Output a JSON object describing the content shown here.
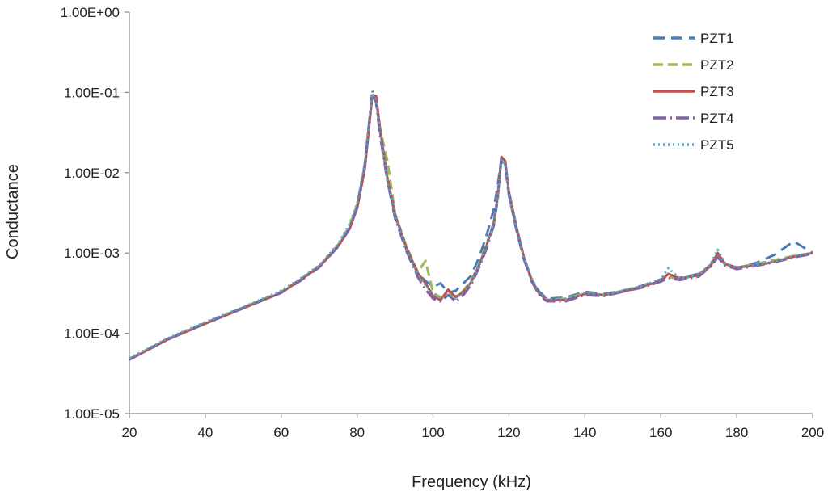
{
  "chart_data": {
    "type": "line",
    "title": "",
    "xlabel": "Frequency (kHz)",
    "ylabel": "Conductance",
    "x_scale": "linear",
    "y_scale": "log",
    "xlim": [
      20,
      200
    ],
    "ylim": [
      1e-05,
      1
    ],
    "x_ticks": [
      20,
      40,
      60,
      80,
      100,
      120,
      140,
      160,
      180,
      200
    ],
    "x_tick_labels": [
      "20",
      "40",
      "60",
      "80",
      "100",
      "120",
      "140",
      "160",
      "180",
      "200"
    ],
    "y_ticks": [
      1e-05,
      0.0001,
      0.001,
      0.01,
      0.1,
      1
    ],
    "y_tick_labels": [
      "1.00E-05",
      "1.00E-04",
      "1.00E-03",
      "1.00E-02",
      "1.00E-01",
      "1.00E+00"
    ],
    "grid": false,
    "legend_position": "top-right",
    "x": [
      20,
      30,
      40,
      50,
      60,
      65,
      70,
      75,
      78,
      80,
      82,
      83,
      84,
      85,
      86,
      88,
      90,
      93,
      96,
      98,
      100,
      102,
      104,
      106,
      108,
      110,
      112,
      114,
      116,
      117,
      118,
      119,
      120,
      122,
      124,
      126,
      128,
      130,
      135,
      140,
      145,
      150,
      155,
      160,
      162,
      165,
      170,
      173,
      175,
      177,
      180,
      185,
      190,
      195,
      200
    ],
    "series": [
      {
        "name": "PZT1",
        "color": "#4a7ebb",
        "dash": "14,8",
        "width": 3,
        "values": [
          4.8e-05,
          8.5e-05,
          0.000135,
          0.00021,
          0.00033,
          0.00046,
          0.00068,
          0.00125,
          0.0021,
          0.0038,
          0.012,
          0.034,
          0.09,
          0.085,
          0.034,
          0.0082,
          0.0029,
          0.0011,
          0.00055,
          0.00045,
          0.00038,
          0.00042,
          0.00032,
          0.00034,
          0.00042,
          0.00052,
          0.00085,
          0.0016,
          0.0035,
          0.0068,
          0.0145,
          0.012,
          0.0052,
          0.0019,
          0.00082,
          0.00046,
          0.00033,
          0.00027,
          0.00028,
          0.00033,
          0.00031,
          0.00034,
          0.00039,
          0.00047,
          0.00052,
          0.00049,
          0.00055,
          0.0007,
          0.0009,
          0.00072,
          0.00065,
          0.00075,
          0.00095,
          0.0014,
          0.001
        ]
      },
      {
        "name": "PZT2",
        "color": "#9bbb59",
        "dash": "12,6",
        "width": 3,
        "values": [
          4.8e-05,
          8.4e-05,
          0.000134,
          0.00021,
          0.00033,
          0.00047,
          0.00069,
          0.00126,
          0.0022,
          0.004,
          0.013,
          0.035,
          0.088,
          0.08,
          0.036,
          0.014,
          0.0031,
          0.0012,
          0.00058,
          0.0008,
          0.00032,
          0.00028,
          0.0003,
          0.00029,
          0.00034,
          0.00045,
          0.0007,
          0.0013,
          0.0022,
          0.0045,
          0.0155,
          0.0125,
          0.0055,
          0.002,
          0.00085,
          0.00045,
          0.00031,
          0.00026,
          0.00027,
          0.00032,
          0.0003,
          0.00034,
          0.00038,
          0.00046,
          0.0005,
          0.00048,
          0.00054,
          0.0007,
          0.00095,
          0.00072,
          0.00066,
          0.00073,
          0.00082,
          0.00092,
          0.001
        ]
      },
      {
        "name": "PZT3",
        "color": "#c0504d",
        "dash": "",
        "width": 3,
        "values": [
          4.7e-05,
          8.3e-05,
          0.000132,
          0.000205,
          0.00032,
          0.00046,
          0.00067,
          0.00122,
          0.002,
          0.0036,
          0.011,
          0.032,
          0.092,
          0.09,
          0.037,
          0.0085,
          0.003,
          0.00115,
          0.00056,
          0.00042,
          0.00029,
          0.00026,
          0.00035,
          0.00028,
          0.00033,
          0.00043,
          0.00068,
          0.0012,
          0.0024,
          0.005,
          0.0158,
          0.014,
          0.0058,
          0.0021,
          0.00087,
          0.00046,
          0.00031,
          0.00026,
          0.00026,
          0.00031,
          0.0003,
          0.00033,
          0.00038,
          0.00045,
          0.00055,
          0.00048,
          0.00053,
          0.00068,
          0.001,
          0.00073,
          0.00066,
          0.0007,
          0.00078,
          0.0009,
          0.001
        ]
      },
      {
        "name": "PZT4",
        "color": "#8064a2",
        "dash": "16,5,2,5",
        "width": 3,
        "values": [
          4.7e-05,
          8.3e-05,
          0.000133,
          0.000206,
          0.00032,
          0.00045,
          0.00066,
          0.0012,
          0.002,
          0.0037,
          0.012,
          0.036,
          0.105,
          0.075,
          0.03,
          0.0078,
          0.0027,
          0.00105,
          0.0005,
          0.00035,
          0.00027,
          0.00025,
          0.0003,
          0.00025,
          0.0003,
          0.0004,
          0.00064,
          0.0011,
          0.0022,
          0.0048,
          0.015,
          0.0128,
          0.0054,
          0.002,
          0.00083,
          0.00044,
          0.0003,
          0.00025,
          0.00025,
          0.0003,
          0.00029,
          0.00033,
          0.00037,
          0.00044,
          0.00049,
          0.00046,
          0.00051,
          0.00067,
          0.00088,
          0.0007,
          0.00063,
          0.00069,
          0.00077,
          0.00088,
          0.00098
        ]
      },
      {
        "name": "PZT5",
        "color": "#4bacc6",
        "dash": "2,4",
        "width": 3,
        "values": [
          4.9e-05,
          8.6e-05,
          0.000138,
          0.000212,
          0.00034,
          0.00048,
          0.0007,
          0.0013,
          0.0023,
          0.0041,
          0.013,
          0.038,
          0.098,
          0.082,
          0.033,
          0.0082,
          0.0029,
          0.0011,
          0.00055,
          0.0004,
          0.00031,
          0.00027,
          0.00031,
          0.00027,
          0.00033,
          0.00043,
          0.00066,
          0.0012,
          0.0023,
          0.0047,
          0.0148,
          0.013,
          0.0056,
          0.0021,
          0.00088,
          0.00048,
          0.00032,
          0.00027,
          0.00027,
          0.00032,
          0.0003,
          0.00034,
          0.00039,
          0.00047,
          0.00065,
          0.00048,
          0.00054,
          0.00072,
          0.0011,
          0.00074,
          0.00066,
          0.00071,
          0.00079,
          0.00091,
          0.00101
        ]
      }
    ]
  }
}
